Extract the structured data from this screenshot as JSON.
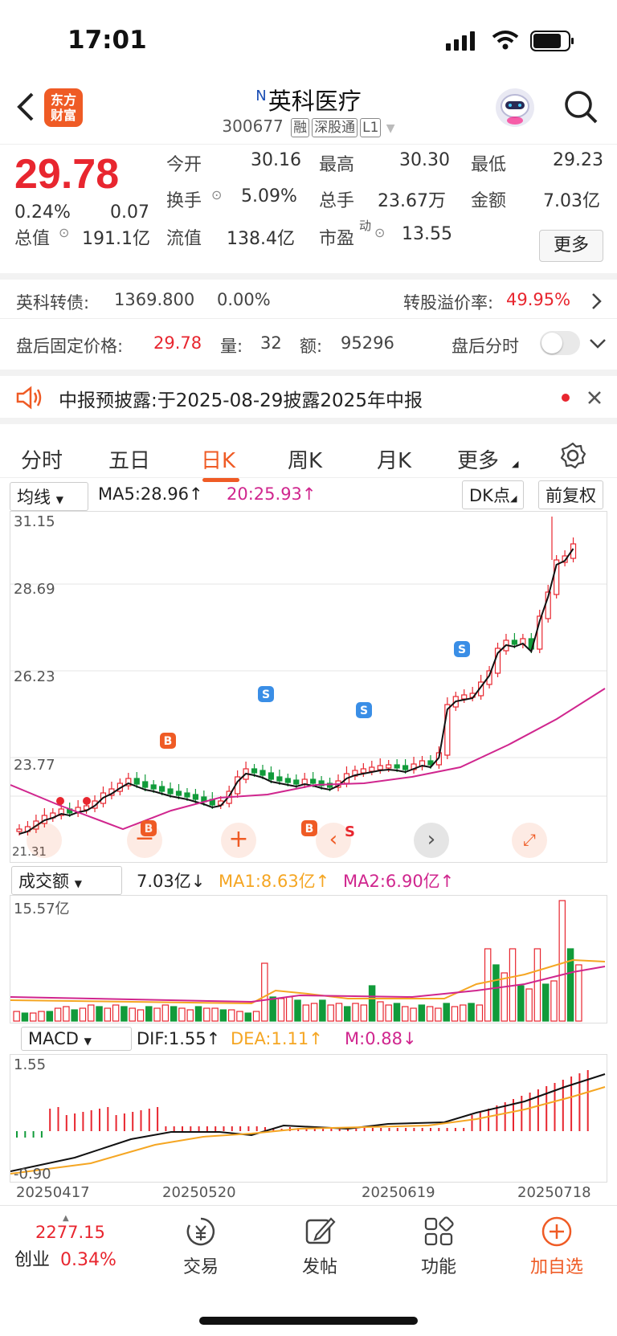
{
  "status": {
    "time": "17:01"
  },
  "header": {
    "logo_line1": "东方",
    "logo_line2": "财富",
    "title_marker": "N",
    "title": "英科医疗",
    "code": "300677",
    "tags": [
      "融",
      "深股通",
      "L1"
    ]
  },
  "quote": {
    "price": "29.78",
    "change_pct": "0.24%",
    "change": "0.07",
    "open_label": "今开",
    "open": "30.16",
    "high_label": "最高",
    "high": "30.30",
    "low_label": "最低",
    "low": "29.23",
    "turnover_label": "换手",
    "turnover": "5.09%",
    "volume_label": "总手",
    "volume": "23.67万",
    "amount_label": "金额",
    "amount": "7.03亿",
    "mktcap_label": "总值",
    "mktcap": "191.1亿",
    "float_label": "流值",
    "float": "138.4亿",
    "pe_label": "市盈",
    "pe_sup": "动",
    "pe": "13.55",
    "more_label": "更多"
  },
  "bond": {
    "label": "英科转债:",
    "price": "1369.800",
    "pct": "0.00%",
    "premium_label": "转股溢价率:",
    "premium": "49.95%"
  },
  "after_hours": {
    "price_label": "盘后固定价格:",
    "price": "29.78",
    "vol_label": "量:",
    "vol": "32",
    "amt_label": "额:",
    "amt": "95296",
    "toggle_label": "盘后分时"
  },
  "notice": {
    "text": "中报预披露:于2025-08-29披露2025年中报"
  },
  "tabs": [
    "分时",
    "五日",
    "日K",
    "周K",
    "月K",
    "更多"
  ],
  "kline": {
    "selector": "均线",
    "ma5": "MA5:28.96↑",
    "ma20": "20:25.93↑",
    "dk": "DK点",
    "adjust": "前复权",
    "y_labels": [
      "31.15",
      "28.69",
      "26.23",
      "23.77"
    ],
    "bottom_label": "21.31",
    "signals": [
      "B",
      "S",
      "S",
      "S",
      "B",
      "S"
    ]
  },
  "volume": {
    "selector": "成交额",
    "value": "7.03亿↓",
    "ma1": "MA1:8.63亿↑",
    "ma2": "MA2:6.90亿↑",
    "max_label": "15.57亿"
  },
  "macd": {
    "selector": "MACD",
    "dif": "DIF:1.55↑",
    "dea": "DEA:1.11↑",
    "m": "M:0.88↓",
    "top_label": "1.55",
    "bottom_label": "-0.90",
    "dates": [
      "20250417",
      "20250520",
      "20250619",
      "20250718"
    ]
  },
  "bottom_nav": {
    "index_value": "2277.15",
    "index_name": "创业",
    "index_pct": "0.34%",
    "trade": "交易",
    "post": "发帖",
    "function": "功能",
    "add": "加自选"
  },
  "colors": {
    "up": "#e8262f",
    "down": "#119b3a",
    "accent": "#ef5b25"
  }
}
